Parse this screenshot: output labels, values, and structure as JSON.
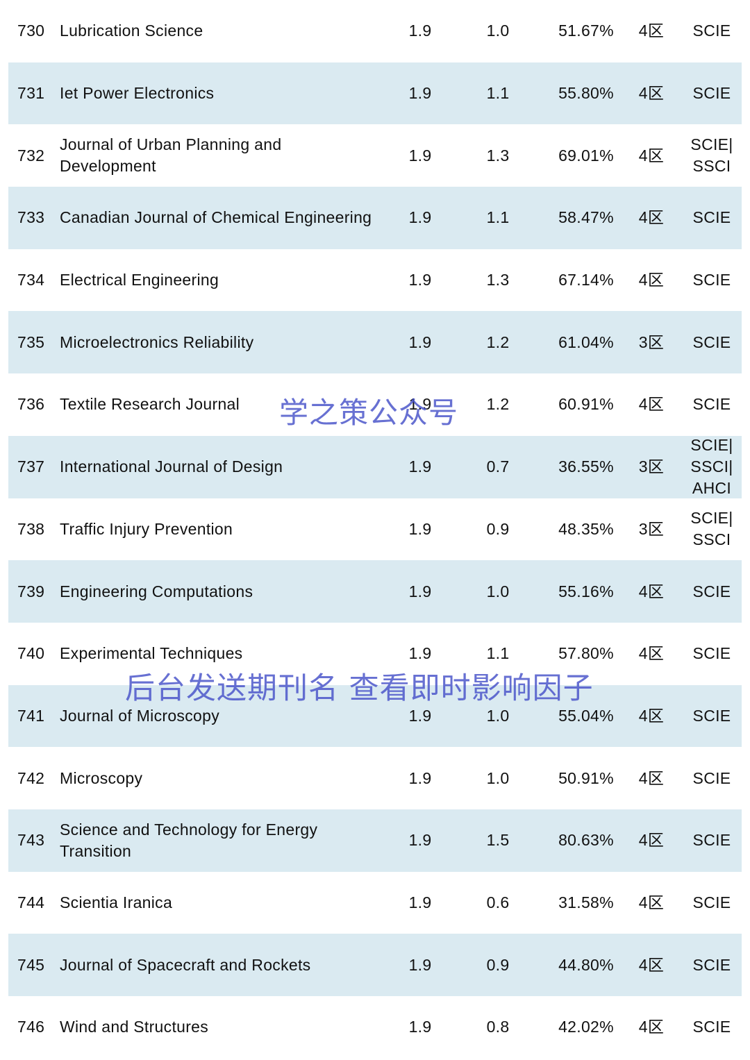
{
  "rows": [
    {
      "num": "730",
      "name": "Lubrication Science",
      "if": "1.9",
      "if5": "1.0",
      "pct": "51.67%",
      "zone": "4区",
      "index": "SCIE"
    },
    {
      "num": "731",
      "name": "Iet Power Electronics",
      "if": "1.9",
      "if5": "1.1",
      "pct": "55.80%",
      "zone": "4区",
      "index": "SCIE"
    },
    {
      "num": "732",
      "name": "Journal of Urban Planning and Development",
      "if": "1.9",
      "if5": "1.3",
      "pct": "69.01%",
      "zone": "4区",
      "index": "SCIE|\nSSCI"
    },
    {
      "num": "733",
      "name": "Canadian Journal of Chemical Engineering",
      "if": "1.9",
      "if5": "1.1",
      "pct": "58.47%",
      "zone": "4区",
      "index": "SCIE"
    },
    {
      "num": "734",
      "name": "Electrical Engineering",
      "if": "1.9",
      "if5": "1.3",
      "pct": "67.14%",
      "zone": "4区",
      "index": "SCIE"
    },
    {
      "num": "735",
      "name": "Microelectronics Reliability",
      "if": "1.9",
      "if5": "1.2",
      "pct": "61.04%",
      "zone": "3区",
      "index": "SCIE"
    },
    {
      "num": "736",
      "name": "Textile Research Journal",
      "if": "1.9",
      "if5": "1.2",
      "pct": "60.91%",
      "zone": "4区",
      "index": "SCIE"
    },
    {
      "num": "737",
      "name": "International Journal of Design",
      "if": "1.9",
      "if5": "0.7",
      "pct": "36.55%",
      "zone": "3区",
      "index": "SCIE|\nSSCI|\nAHCI"
    },
    {
      "num": "738",
      "name": "Traffic Injury Prevention",
      "if": "1.9",
      "if5": "0.9",
      "pct": "48.35%",
      "zone": "3区",
      "index": "SCIE|\nSSCI"
    },
    {
      "num": "739",
      "name": "Engineering Computations",
      "if": "1.9",
      "if5": "1.0",
      "pct": "55.16%",
      "zone": "4区",
      "index": "SCIE"
    },
    {
      "num": "740",
      "name": "Experimental Techniques",
      "if": "1.9",
      "if5": "1.1",
      "pct": "57.80%",
      "zone": "4区",
      "index": "SCIE"
    },
    {
      "num": "741",
      "name": "Journal of Microscopy",
      "if": "1.9",
      "if5": "1.0",
      "pct": "55.04%",
      "zone": "4区",
      "index": "SCIE"
    },
    {
      "num": "742",
      "name": "Microscopy",
      "if": "1.9",
      "if5": "1.0",
      "pct": "50.91%",
      "zone": "4区",
      "index": "SCIE"
    },
    {
      "num": "743",
      "name": "Science and Technology for Energy Transition",
      "if": "1.9",
      "if5": "1.5",
      "pct": "80.63%",
      "zone": "4区",
      "index": "SCIE"
    },
    {
      "num": "744",
      "name": "Scientia Iranica",
      "if": "1.9",
      "if5": "0.6",
      "pct": "31.58%",
      "zone": "4区",
      "index": "SCIE"
    },
    {
      "num": "745",
      "name": "Journal of Spacecraft and Rockets",
      "if": "1.9",
      "if5": "0.9",
      "pct": "44.80%",
      "zone": "4区",
      "index": "SCIE"
    },
    {
      "num": "746",
      "name": "Wind and Structures",
      "if": "1.9",
      "if5": "0.8",
      "pct": "42.02%",
      "zone": "4区",
      "index": "SCIE"
    }
  ],
  "watermarks": {
    "account": "学之策公众号",
    "instruction": "后台发送期刊名 查看即时影响因子"
  },
  "colors": {
    "row_shade": "#daeaf1",
    "watermark": "#4650c8"
  }
}
